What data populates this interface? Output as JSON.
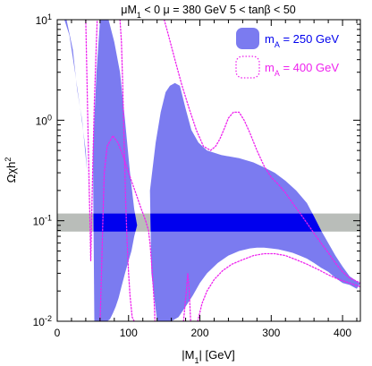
{
  "chart_data": {
    "type": "area",
    "title": "μM1 < 0    μ = 380 GeV   5 < tanβ < 50",
    "title_parts": {
      "mu": "μM",
      "mu_sub": "1",
      "mu_rest": " < 0    μ = 380 GeV   5 < tanβ < 50"
    },
    "xlabel": {
      "pre": "|M",
      "sub": "1",
      "post": "| [GeV]"
    },
    "ylabel": {
      "main": "Ωχh",
      "sup": "2"
    },
    "x_range": [
      0,
      425
    ],
    "y_range": [
      0.01,
      10
    ],
    "y_scale": "log",
    "x_ticks": [
      0,
      100,
      200,
      300,
      400
    ],
    "x_tick_labels": [
      "0",
      "100",
      "200",
      "300",
      "400"
    ],
    "y_ticks": [
      0.01,
      0.1,
      1,
      10
    ],
    "y_tick_labels": [
      {
        "base": "10",
        "exp": "-2"
      },
      {
        "base": "10",
        "exp": "-1"
      },
      {
        "base": "10",
        "exp": "0"
      },
      {
        "base": "10",
        "exp": "1"
      }
    ],
    "wmap_band": {
      "y_low": 0.078,
      "y_high": 0.118,
      "color": "#b9bdb9"
    },
    "grid": false,
    "legend_position": "top-right",
    "series": [
      {
        "name": "m_A = 250 GeV",
        "label": {
          "pre": "m",
          "sub": "A",
          "post": " = 250 GeV"
        },
        "style": "filled",
        "color": "#7b7bf0",
        "label_color": "#0000ee",
        "regions": [
          {
            "upper": [
              [
                4,
                10
              ],
              [
                13,
                10
              ],
              [
                22,
                5
              ],
              [
                28,
                2
              ],
              [
                35,
                1
              ],
              [
                42,
                0.3
              ],
              [
                46,
                0.1
              ]
            ],
            "lower": [
              [
                46,
                0.1
              ],
              [
                40,
                0.5
              ],
              [
                33,
                1.2
              ],
              [
                25,
                3
              ],
              [
                17,
                7
              ],
              [
                10,
                10
              ]
            ]
          },
          {
            "upper": [
              [
                50,
                0.5
              ],
              [
                55,
                3
              ],
              [
                60,
                10
              ],
              [
                72,
                10
              ],
              [
                80,
                6
              ],
              [
                88,
                3
              ],
              [
                95,
                1
              ],
              [
                102,
                0.3
              ],
              [
                108,
                0.13
              ],
              [
                112,
                0.09
              ]
            ],
            "lower": [
              [
                112,
                0.09
              ],
              [
                108,
                0.07
              ],
              [
                104,
                0.05
              ],
              [
                100,
                0.04
              ],
              [
                95,
                0.03
              ],
              [
                90,
                0.022
              ],
              [
                86,
                0.017
              ],
              [
                82,
                0.014
              ],
              [
                78,
                0.012
              ],
              [
                74,
                0.0105
              ],
              [
                70,
                0.01
              ],
              [
                52,
                0.01
              ]
            ]
          },
          {
            "upper": [
              [
                130,
                0.2
              ],
              [
                138,
                0.6
              ],
              [
                145,
                1.2
              ],
              [
                152,
                1.9
              ],
              [
                158,
                2.2
              ],
              [
                165,
                2.35
              ],
              [
                172,
                2.2
              ],
              [
                180,
                1.3
              ],
              [
                188,
                0.8
              ],
              [
                198,
                0.6
              ],
              [
                210,
                0.5
              ],
              [
                230,
                0.45
              ],
              [
                255,
                0.42
              ],
              [
                275,
                0.38
              ],
              [
                290,
                0.34
              ],
              [
                305,
                0.3
              ],
              [
                320,
                0.25
              ],
              [
                335,
                0.2
              ],
              [
                350,
                0.15
              ],
              [
                360,
                0.11
              ],
              [
                370,
                0.08
              ],
              [
                380,
                0.06
              ],
              [
                390,
                0.045
              ],
              [
                400,
                0.035
              ],
              [
                410,
                0.028
              ],
              [
                420,
                0.025
              ],
              [
                425,
                0.024
              ]
            ],
            "lower": [
              [
                425,
                0.024
              ],
              [
                420,
                0.021
              ],
              [
                410,
                0.023
              ],
              [
                400,
                0.024
              ],
              [
                390,
                0.027
              ],
              [
                380,
                0.031
              ],
              [
                370,
                0.034
              ],
              [
                360,
                0.038
              ],
              [
                350,
                0.042
              ],
              [
                340,
                0.045
              ],
              [
                330,
                0.048
              ],
              [
                320,
                0.05
              ],
              [
                310,
                0.052
              ],
              [
                300,
                0.053
              ],
              [
                290,
                0.054
              ],
              [
                280,
                0.054
              ],
              [
                270,
                0.053
              ],
              [
                255,
                0.05
              ],
              [
                240,
                0.045
              ],
              [
                225,
                0.038
              ],
              [
                210,
                0.03
              ],
              [
                200,
                0.024
              ],
              [
                190,
                0.018
              ],
              [
                180,
                0.014
              ],
              [
                170,
                0.011
              ],
              [
                160,
                0.01
              ],
              [
                140,
                0.01
              ],
              [
                132,
                0.03
              ]
            ]
          }
        ]
      },
      {
        "name": "m_A = 400 GeV",
        "label": {
          "pre": "m",
          "sub": "A",
          "post": " = 400 GeV"
        },
        "style": "dotted",
        "color": "#ee22ee",
        "label_color": "#ee22ee",
        "curves": [
          [
            [
              40,
              10
            ],
            [
              42,
              2
            ],
            [
              44,
              0.4
            ],
            [
              46,
              0.09
            ],
            [
              47,
              0.04
            ],
            [
              48,
              0.09
            ],
            [
              50,
              0.4
            ],
            [
              52,
              1.5
            ],
            [
              54,
              4
            ],
            [
              56,
              10
            ]
          ],
          [
            [
              88,
              10
            ],
            [
              90,
              6
            ],
            [
              92,
              2
            ],
            [
              94,
              0.5
            ],
            [
              96,
              0.15
            ],
            [
              98,
              0.06
            ],
            [
              100,
              0.03
            ],
            [
              102,
              0.018
            ],
            [
              105,
              0.011
            ],
            [
              108,
              0.01
            ]
          ],
          [
            [
              60,
              0.01
            ],
            [
              62,
              0.03
            ],
            [
              64,
              0.1
            ],
            [
              66,
              0.3
            ],
            [
              70,
              0.55
            ],
            [
              78,
              0.7
            ],
            [
              85,
              0.6
            ],
            [
              92,
              0.45
            ],
            [
              100,
              0.3
            ],
            [
              110,
              0.19
            ],
            [
              118,
              0.13
            ],
            [
              124,
              0.1
            ],
            [
              128,
              0.08
            ],
            [
              130,
              0.06
            ],
            [
              132,
              0.04
            ],
            [
              134,
              0.025
            ],
            [
              136,
              0.015
            ],
            [
              137,
              0.01
            ]
          ],
          [
            [
              150,
              10
            ],
            [
              156,
              7
            ],
            [
              165,
              4
            ],
            [
              175,
              2.2
            ],
            [
              185,
              1.3
            ],
            [
              195,
              0.8
            ],
            [
              205,
              0.55
            ],
            [
              215,
              0.5
            ],
            [
              222,
              0.55
            ],
            [
              228,
              0.65
            ],
            [
              235,
              0.85
            ],
            [
              240,
              1.05
            ],
            [
              247,
              1.2
            ],
            [
              255,
              1.2
            ],
            [
              262,
              1.0
            ],
            [
              270,
              0.75
            ],
            [
              280,
              0.5
            ],
            [
              290,
              0.35
            ],
            [
              300,
              0.27
            ],
            [
              310,
              0.23
            ],
            [
              320,
              0.19
            ],
            [
              330,
              0.15
            ],
            [
              340,
              0.12
            ],
            [
              350,
              0.095
            ],
            [
              360,
              0.075
            ],
            [
              370,
              0.06
            ],
            [
              380,
              0.048
            ],
            [
              390,
              0.038
            ],
            [
              400,
              0.031
            ],
            [
              410,
              0.027
            ],
            [
              420,
              0.025
            ],
            [
              425,
              0.024
            ]
          ],
          [
            [
              177,
              0.01
            ],
            [
              181,
              0.02
            ],
            [
              183,
              0.03
            ],
            [
              185,
              0.02
            ],
            [
              187,
              0.01
            ]
          ],
          [
            [
              197,
              0.01
            ],
            [
              203,
              0.015
            ],
            [
              210,
              0.02
            ],
            [
              220,
              0.026
            ],
            [
              232,
              0.032
            ],
            [
              245,
              0.037
            ],
            [
              260,
              0.041
            ],
            [
              275,
              0.045
            ],
            [
              290,
              0.047
            ],
            [
              305,
              0.047
            ],
            [
              320,
              0.045
            ],
            [
              335,
              0.041
            ],
            [
              350,
              0.037
            ],
            [
              365,
              0.033
            ],
            [
              380,
              0.029
            ],
            [
              395,
              0.026
            ],
            [
              410,
              0.024
            ],
            [
              425,
              0.022
            ]
          ]
        ]
      }
    ]
  }
}
